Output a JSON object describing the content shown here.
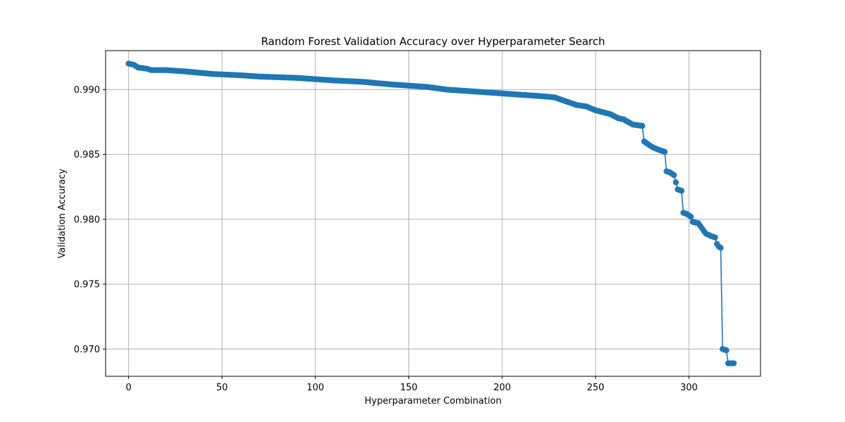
{
  "chart_data": {
    "type": "line",
    "title": "Random Forest Validation Accuracy over Hyperparameter Search",
    "xlabel": "Hyperparameter Combination",
    "ylabel": "Validation Accuracy",
    "xlim": [
      -12.3,
      338.3
    ],
    "ylim": [
      0.9679,
      0.993
    ],
    "xticks": [
      0,
      50,
      100,
      150,
      200,
      250,
      300
    ],
    "xtick_labels": [
      "0",
      "50",
      "100",
      "150",
      "200",
      "250",
      "300"
    ],
    "yticks": [
      0.97,
      0.975,
      0.98,
      0.985,
      0.99
    ],
    "ytick_labels": [
      "0.970",
      "0.975",
      "0.980",
      "0.985",
      "0.990"
    ],
    "grid": true,
    "color": "#1f77b4",
    "marker": "circle",
    "breakpoints": [
      [
        0,
        0.992
      ],
      [
        3,
        0.9919
      ],
      [
        5,
        0.9917
      ],
      [
        10,
        0.9916
      ],
      [
        12,
        0.9915
      ],
      [
        20,
        0.9915
      ],
      [
        30,
        0.9914
      ],
      [
        45,
        0.9912
      ],
      [
        60,
        0.9911
      ],
      [
        70,
        0.991
      ],
      [
        90,
        0.9909
      ],
      [
        100,
        0.9908
      ],
      [
        110,
        0.9907
      ],
      [
        125,
        0.9906
      ],
      [
        140,
        0.9904
      ],
      [
        150,
        0.9903
      ],
      [
        160,
        0.9902
      ],
      [
        170,
        0.99
      ],
      [
        180,
        0.9899
      ],
      [
        190,
        0.9898
      ],
      [
        200,
        0.9897
      ],
      [
        210,
        0.9896
      ],
      [
        220,
        0.9895
      ],
      [
        228,
        0.9894
      ],
      [
        232,
        0.9892
      ],
      [
        240,
        0.9888
      ],
      [
        245,
        0.9887
      ],
      [
        250,
        0.9884
      ],
      [
        258,
        0.9881
      ],
      [
        262,
        0.9878
      ],
      [
        265,
        0.9877
      ],
      [
        270,
        0.9873
      ],
      [
        275,
        0.9872
      ],
      [
        276,
        0.986
      ],
      [
        280,
        0.9856
      ],
      [
        283,
        0.9854
      ],
      [
        287,
        0.9852
      ],
      [
        288,
        0.9837
      ],
      [
        290,
        0.9836
      ],
      [
        292,
        0.9834
      ],
      [
        294,
        0.9823
      ],
      [
        296,
        0.9822
      ],
      [
        297,
        0.9805
      ],
      [
        299,
        0.9804
      ],
      [
        301,
        0.9802
      ],
      [
        302,
        0.9798
      ],
      [
        305,
        0.9797
      ],
      [
        307,
        0.9793
      ],
      [
        309,
        0.9789
      ],
      [
        312,
        0.9787
      ],
      [
        314,
        0.9786
      ],
      [
        315,
        0.9781
      ],
      [
        316,
        0.9779
      ],
      [
        317,
        0.9778
      ],
      [
        318,
        0.97
      ],
      [
        320,
        0.9699
      ],
      [
        321,
        0.9689
      ],
      [
        324,
        0.9689
      ]
    ]
  }
}
